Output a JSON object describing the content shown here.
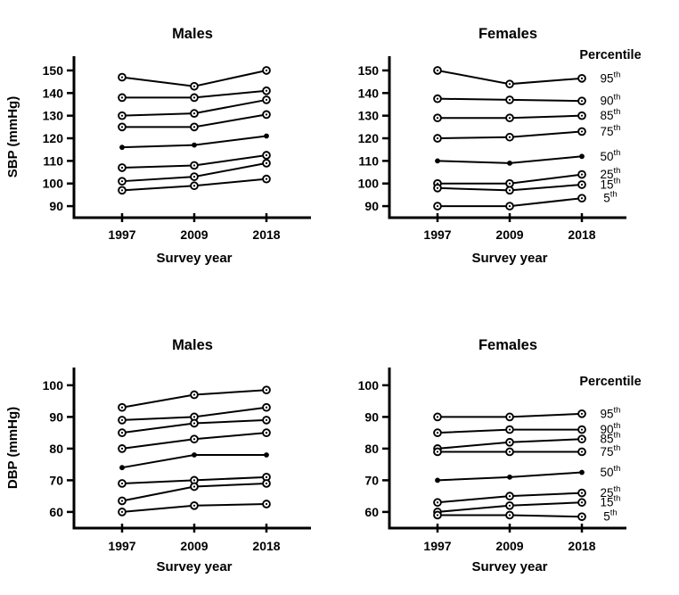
{
  "figure": {
    "background_color": "#ffffff",
    "line_color": "#000000",
    "legend_title": "Percentile"
  },
  "chart_data": [
    {
      "id": "sbp-males",
      "type": "line",
      "title": "Males",
      "ylabel": "SBP (mmHg)",
      "xlabel": "Survey year",
      "categories": [
        "1997",
        "2009",
        "2018"
      ],
      "yticks": [
        90,
        100,
        110,
        120,
        130,
        140,
        150
      ],
      "ylim": [
        84.9,
        156.3
      ],
      "grid": false,
      "legend": "none",
      "legend_title": "",
      "series": [
        {
          "name": "95th",
          "label": "95",
          "label_sup": "th",
          "marker": "open",
          "values": [
            147,
            143,
            150
          ]
        },
        {
          "name": "90th",
          "label": "90",
          "label_sup": "th",
          "marker": "open",
          "values": [
            138,
            138,
            141
          ]
        },
        {
          "name": "85th",
          "label": "85",
          "label_sup": "th",
          "marker": "open",
          "values": [
            130,
            131,
            137
          ]
        },
        {
          "name": "75th",
          "label": "75",
          "label_sup": "th",
          "marker": "open",
          "values": [
            125,
            125,
            130.5
          ]
        },
        {
          "name": "50th",
          "label": "50",
          "label_sup": "th",
          "marker": "filled",
          "values": [
            116,
            117,
            121
          ]
        },
        {
          "name": "25th",
          "label": "25",
          "label_sup": "th",
          "marker": "open",
          "values": [
            107,
            108,
            112.5
          ]
        },
        {
          "name": "15th",
          "label": "15",
          "label_sup": "th",
          "marker": "open",
          "values": [
            101,
            103,
            109
          ]
        },
        {
          "name": "5th",
          "label": "5",
          "label_sup": "th",
          "marker": "open",
          "values": [
            97,
            99,
            102
          ]
        }
      ]
    },
    {
      "id": "sbp-females",
      "type": "line",
      "title": "Females",
      "ylabel": "",
      "xlabel": "Survey year",
      "categories": [
        "1997",
        "2009",
        "2018"
      ],
      "yticks": [
        90,
        100,
        110,
        120,
        130,
        140,
        150
      ],
      "ylim": [
        84.9,
        156.3
      ],
      "grid": false,
      "legend": "right",
      "legend_title": "Percentile",
      "series": [
        {
          "name": "95th",
          "label": "95",
          "label_sup": "th",
          "marker": "open",
          "values": [
            150,
            144,
            146.5
          ]
        },
        {
          "name": "90th",
          "label": "90",
          "label_sup": "th",
          "marker": "open",
          "values": [
            137.5,
            137,
            136.5
          ]
        },
        {
          "name": "85th",
          "label": "85",
          "label_sup": "th",
          "marker": "open",
          "values": [
            129,
            129,
            130
          ]
        },
        {
          "name": "75th",
          "label": "75",
          "label_sup": "th",
          "marker": "open",
          "values": [
            120,
            120.5,
            123
          ]
        },
        {
          "name": "50th",
          "label": "50",
          "label_sup": "th",
          "marker": "filled",
          "values": [
            110,
            109,
            112
          ]
        },
        {
          "name": "25th",
          "label": "25",
          "label_sup": "th",
          "marker": "open",
          "values": [
            100,
            100,
            104
          ]
        },
        {
          "name": "15th",
          "label": "15",
          "label_sup": "th",
          "marker": "open",
          "values": [
            98,
            97,
            99.5
          ]
        },
        {
          "name": "5th",
          "label": "5",
          "label_sup": "th",
          "marker": "open",
          "values": [
            90,
            90,
            93.5
          ]
        }
      ]
    },
    {
      "id": "dbp-males",
      "type": "line",
      "title": "Males",
      "ylabel": "DBP (mmHg)",
      "xlabel": "Survey year",
      "categories": [
        "1997",
        "2009",
        "2018"
      ],
      "yticks": [
        60,
        70,
        80,
        90,
        100
      ],
      "ylim": [
        54.9,
        105.6
      ],
      "grid": false,
      "legend": "none",
      "legend_title": "",
      "series": [
        {
          "name": "95th",
          "label": "95",
          "label_sup": "th",
          "marker": "open",
          "values": [
            93,
            97,
            98.5
          ]
        },
        {
          "name": "90th",
          "label": "90",
          "label_sup": "th",
          "marker": "open",
          "values": [
            89,
            90,
            93
          ]
        },
        {
          "name": "85th",
          "label": "85",
          "label_sup": "th",
          "marker": "open",
          "values": [
            85,
            88,
            89
          ]
        },
        {
          "name": "75th",
          "label": "75",
          "label_sup": "th",
          "marker": "open",
          "values": [
            80,
            83,
            85
          ]
        },
        {
          "name": "50th",
          "label": "50",
          "label_sup": "th",
          "marker": "filled",
          "values": [
            74,
            78,
            78
          ]
        },
        {
          "name": "25th",
          "label": "25",
          "label_sup": "th",
          "marker": "open",
          "values": [
            69,
            70,
            71
          ]
        },
        {
          "name": "15th",
          "label": "15",
          "label_sup": "th",
          "marker": "open",
          "values": [
            63.5,
            68,
            69
          ]
        },
        {
          "name": "5th",
          "label": "5",
          "label_sup": "th",
          "marker": "open",
          "values": [
            60,
            62,
            62.5
          ]
        }
      ]
    },
    {
      "id": "dbp-females",
      "type": "line",
      "title": "Females",
      "ylabel": "",
      "xlabel": "Survey year",
      "categories": [
        "1997",
        "2009",
        "2018"
      ],
      "yticks": [
        60,
        70,
        80,
        90,
        100
      ],
      "ylim": [
        54.9,
        105.6
      ],
      "grid": false,
      "legend": "right",
      "legend_title": "Percentile",
      "series": [
        {
          "name": "95th",
          "label": "95",
          "label_sup": "th",
          "marker": "open",
          "values": [
            90,
            90,
            91
          ]
        },
        {
          "name": "90th",
          "label": "90",
          "label_sup": "th",
          "marker": "open",
          "values": [
            85,
            86,
            86
          ]
        },
        {
          "name": "85th",
          "label": "85",
          "label_sup": "th",
          "marker": "open",
          "values": [
            80,
            82,
            83
          ]
        },
        {
          "name": "75th",
          "label": "75",
          "label_sup": "th",
          "marker": "open",
          "values": [
            79,
            79,
            79
          ]
        },
        {
          "name": "50th",
          "label": "50",
          "label_sup": "th",
          "marker": "filled",
          "values": [
            70,
            71,
            72.5
          ]
        },
        {
          "name": "25th",
          "label": "25",
          "label_sup": "th",
          "marker": "open",
          "values": [
            63,
            65,
            66
          ]
        },
        {
          "name": "15th",
          "label": "15",
          "label_sup": "th",
          "marker": "open",
          "values": [
            60,
            62,
            63
          ]
        },
        {
          "name": "5th",
          "label": "5",
          "label_sup": "th",
          "marker": "open",
          "values": [
            59,
            59,
            58.5
          ]
        }
      ]
    }
  ]
}
